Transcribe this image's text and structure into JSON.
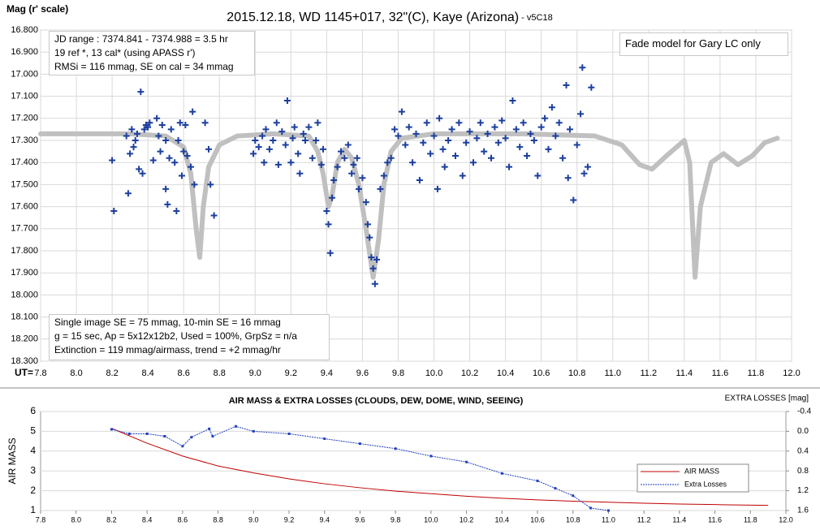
{
  "chart_data": [
    {
      "type": "scatter",
      "title": "2015.12.18, WD 1145+017, 32\"(C), Kaye (Arizona)",
      "subtitle": " - v5C18",
      "y_label": "Mag (r' scale)",
      "x_label": "UT=",
      "xlim": [
        7.8,
        12.0
      ],
      "xticks": [
        7.8,
        {
          "value": 8.0,
          "label": "8.0"
        },
        8.2,
        8.4,
        8.6,
        8.8,
        {
          "value": 9.0,
          "label": "9.0"
        },
        9.2,
        9.4,
        9.6,
        9.8,
        {
          "value": 10.0,
          "label": "10.0"
        },
        10.2,
        10.4,
        10.6,
        10.8,
        {
          "value": 11.0,
          "label": "11.0"
        },
        11.2,
        11.4,
        11.6,
        11.8,
        {
          "value": 12.0,
          "label": "12.0"
        }
      ],
      "ylim": [
        18.3,
        16.8
      ],
      "yticks": [
        {
          "value": 16.8,
          "label": "16.800"
        },
        {
          "value": 16.9,
          "label": "16.900"
        },
        {
          "value": 17.0,
          "label": "17.000"
        },
        {
          "value": 17.1,
          "label": "17.100"
        },
        {
          "value": 17.2,
          "label": "17.200"
        },
        {
          "value": 17.3,
          "label": "17.300"
        },
        {
          "value": 17.4,
          "label": "17.400"
        },
        {
          "value": 17.5,
          "label": "17.500"
        },
        {
          "value": 17.6,
          "label": "17.600"
        },
        {
          "value": 17.7,
          "label": "17.700"
        },
        {
          "value": 17.8,
          "label": "17.800"
        },
        {
          "value": 17.9,
          "label": "17.900"
        },
        {
          "value": 18.0,
          "label": "18.000"
        },
        {
          "value": 18.1,
          "label": "18.100"
        },
        {
          "value": 18.2,
          "label": "18.200"
        },
        {
          "value": 18.3,
          "label": "18.300"
        }
      ],
      "grid": true,
      "series": [
        {
          "style": "line",
          "color": "#c0c0c0",
          "x": [
            7.8,
            8.0,
            8.3,
            8.5,
            8.6,
            8.64,
            8.67,
            8.69,
            8.71,
            8.74,
            8.8,
            8.9,
            9.1,
            9.3,
            9.35,
            9.38,
            9.41,
            9.43,
            9.46,
            9.5,
            9.54,
            9.58,
            9.62,
            9.66,
            9.69,
            9.72,
            9.76,
            9.82,
            10.0,
            10.5,
            10.9,
            11.05,
            11.15,
            11.22,
            11.3,
            11.4,
            11.43,
            11.46,
            11.49,
            11.55,
            11.62,
            11.7,
            11.78,
            11.85,
            11.92
          ],
          "values": [
            17.27,
            17.27,
            17.27,
            17.28,
            17.33,
            17.45,
            17.7,
            17.83,
            17.6,
            17.42,
            17.32,
            17.28,
            17.27,
            17.28,
            17.35,
            17.45,
            17.6,
            17.55,
            17.4,
            17.34,
            17.38,
            17.5,
            17.7,
            17.92,
            17.75,
            17.5,
            17.35,
            17.29,
            17.27,
            17.27,
            17.28,
            17.32,
            17.41,
            17.43,
            17.37,
            17.3,
            17.4,
            17.92,
            17.6,
            17.4,
            17.36,
            17.41,
            17.37,
            17.31,
            17.29
          ]
        },
        {
          "style": "plus",
          "color": "#1c3f9e",
          "x": [
            8.2,
            8.21,
            8.28,
            8.29,
            8.3,
            8.31,
            8.32,
            8.33,
            8.34,
            8.35,
            8.36,
            8.37,
            8.38,
            8.39,
            8.4,
            8.41,
            8.43,
            8.45,
            8.46,
            8.47,
            8.48,
            8.5,
            8.5,
            8.51,
            8.52,
            8.53,
            8.55,
            8.56,
            8.57,
            8.58,
            8.59,
            8.6,
            8.61,
            8.62,
            8.64,
            8.65,
            8.66,
            8.72,
            8.74,
            8.75,
            8.77,
            8.99,
            9.0,
            9.02,
            9.04,
            9.05,
            9.06,
            9.08,
            9.1,
            9.12,
            9.13,
            9.15,
            9.17,
            9.18,
            9.2,
            9.21,
            9.22,
            9.24,
            9.25,
            9.27,
            9.28,
            9.3,
            9.32,
            9.34,
            9.35,
            9.37,
            9.38,
            9.4,
            9.41,
            9.42,
            9.43,
            9.44,
            9.46,
            9.48,
            9.5,
            9.52,
            9.54,
            9.55,
            9.57,
            9.58,
            9.6,
            9.62,
            9.63,
            9.64,
            9.65,
            9.66,
            9.67,
            9.68,
            9.7,
            9.72,
            9.74,
            9.76,
            9.78,
            9.8,
            9.82,
            9.84,
            9.86,
            9.88,
            9.9,
            9.92,
            9.94,
            9.96,
            9.98,
            10.0,
            10.02,
            10.03,
            10.05,
            10.06,
            10.08,
            10.1,
            10.12,
            10.14,
            10.16,
            10.18,
            10.2,
            10.22,
            10.24,
            10.26,
            10.28,
            10.3,
            10.32,
            10.34,
            10.36,
            10.38,
            10.4,
            10.42,
            10.44,
            10.46,
            10.48,
            10.5,
            10.52,
            10.54,
            10.56,
            10.58,
            10.6,
            10.62,
            10.64,
            10.66,
            10.68,
            10.7,
            10.72,
            10.74,
            10.75,
            10.76,
            10.78,
            10.8,
            10.82,
            10.83,
            10.84,
            10.86,
            10.88
          ],
          "values": [
            17.39,
            17.62,
            17.28,
            17.54,
            17.36,
            17.25,
            17.33,
            17.3,
            17.27,
            17.43,
            17.08,
            17.45,
            17.25,
            17.23,
            17.24,
            17.22,
            17.39,
            17.2,
            17.28,
            17.35,
            17.23,
            17.3,
            17.52,
            17.59,
            17.38,
            17.25,
            17.4,
            17.62,
            17.3,
            17.22,
            17.46,
            17.35,
            17.23,
            17.37,
            17.42,
            17.17,
            17.5,
            17.22,
            17.34,
            17.5,
            17.64,
            17.36,
            17.3,
            17.33,
            17.28,
            17.4,
            17.25,
            17.34,
            17.3,
            17.22,
            17.41,
            17.26,
            17.32,
            17.12,
            17.4,
            17.29,
            17.24,
            17.36,
            17.45,
            17.27,
            17.3,
            17.24,
            17.38,
            17.3,
            17.22,
            17.41,
            17.34,
            17.62,
            17.68,
            17.81,
            17.56,
            17.48,
            17.42,
            17.35,
            17.38,
            17.32,
            17.45,
            17.41,
            17.38,
            17.52,
            17.47,
            17.58,
            17.68,
            17.74,
            17.83,
            17.88,
            17.95,
            17.84,
            17.52,
            17.46,
            17.4,
            17.38,
            17.25,
            17.28,
            17.17,
            17.32,
            17.24,
            17.4,
            17.27,
            17.48,
            17.31,
            17.22,
            17.36,
            17.28,
            17.52,
            17.2,
            17.34,
            17.42,
            17.3,
            17.25,
            17.37,
            17.22,
            17.46,
            17.31,
            17.26,
            17.4,
            17.29,
            17.22,
            17.35,
            17.27,
            17.38,
            17.24,
            17.31,
            17.21,
            17.29,
            17.42,
            17.12,
            17.25,
            17.33,
            17.22,
            17.37,
            17.27,
            17.3,
            17.46,
            17.24,
            17.2,
            17.34,
            17.15,
            17.28,
            17.22,
            17.38,
            17.05,
            17.47,
            17.25,
            17.57,
            17.32,
            17.18,
            16.97,
            17.45,
            17.42,
            17.06
          ]
        }
      ],
      "annotations": [
        {
          "lines": [
            "JD range : 7374.841 - 7374.988 = 3.5 hr",
            "19 ref *, 13 cal* (using APASS r')",
            "RMSi = 116 mmag, SE on cal = 34 mmag"
          ]
        },
        {
          "lines": [
            "Fade model for Gary LC only"
          ]
        },
        {
          "lines": [
            "Single image SE = 75 mmag, 10-min SE = 16 mmag",
            "g = 15 sec, Ap = 5x12x12b2, Used = 100%, GrpSz = n/a",
            "Extinction = 119 mmag/airmass, trend = +2 mmag/hr"
          ]
        }
      ]
    },
    {
      "type": "line",
      "title": "AIR MASS & EXTRA LOSSES (CLOUDS, DEW, DOME, WIND, SEEING)",
      "y_label": "AIR MASS",
      "y2_label": "EXTRA LOSSES [mag]",
      "xlim": [
        7.8,
        12.0
      ],
      "xticks": [
        7.8,
        {
          "value": 8.0,
          "label": "8.0"
        },
        8.2,
        8.4,
        8.6,
        8.8,
        {
          "value": 9.0,
          "label": "9.0"
        },
        9.2,
        9.4,
        9.6,
        9.8,
        {
          "value": 10.0,
          "label": "10.0"
        },
        10.2,
        10.4,
        10.6,
        10.8,
        {
          "value": 11.0,
          "label": "11.0"
        },
        11.2,
        11.4,
        11.6,
        11.8,
        {
          "value": 12.0,
          "label": "12.0"
        }
      ],
      "ylim": [
        1,
        6
      ],
      "yticks": [
        1,
        2,
        3,
        4,
        5,
        6
      ],
      "y2lim": [
        1.6,
        -0.4
      ],
      "y2ticks": [
        -0.4,
        {
          "value": 0.0,
          "label": "0.0"
        },
        0.4,
        0.8,
        1.2,
        1.6
      ],
      "grid": true,
      "series": [
        {
          "name": "AIR MASS",
          "color": "#c00000",
          "style": "solid",
          "x": [
            8.2,
            8.4,
            8.6,
            8.8,
            9.0,
            9.2,
            9.4,
            9.6,
            9.8,
            10.0,
            10.2,
            10.4,
            10.6,
            10.8,
            11.0,
            11.2,
            11.4,
            11.6,
            11.8,
            11.9
          ],
          "values": [
            5.15,
            4.4,
            3.75,
            3.25,
            2.9,
            2.6,
            2.35,
            2.15,
            1.98,
            1.85,
            1.72,
            1.62,
            1.54,
            1.47,
            1.42,
            1.37,
            1.33,
            1.3,
            1.27,
            1.26
          ]
        },
        {
          "name": "Extra Losses",
          "color": "#1f3fbf",
          "style": "dashed",
          "axis": "y2",
          "x": [
            8.2,
            8.3,
            8.4,
            8.5,
            8.6,
            8.65,
            8.75,
            8.77,
            8.9,
            9.0,
            9.2,
            9.4,
            9.6,
            9.8,
            10.0,
            10.2,
            10.4,
            10.6,
            10.7,
            10.8,
            10.9,
            11.0
          ],
          "values": [
            -0.04,
            0.05,
            0.05,
            0.1,
            0.3,
            0.12,
            -0.05,
            0.1,
            -0.1,
            0.0,
            0.05,
            0.15,
            0.25,
            0.35,
            0.5,
            0.62,
            0.85,
            1.0,
            1.15,
            1.3,
            1.55,
            1.6
          ]
        }
      ]
    }
  ]
}
